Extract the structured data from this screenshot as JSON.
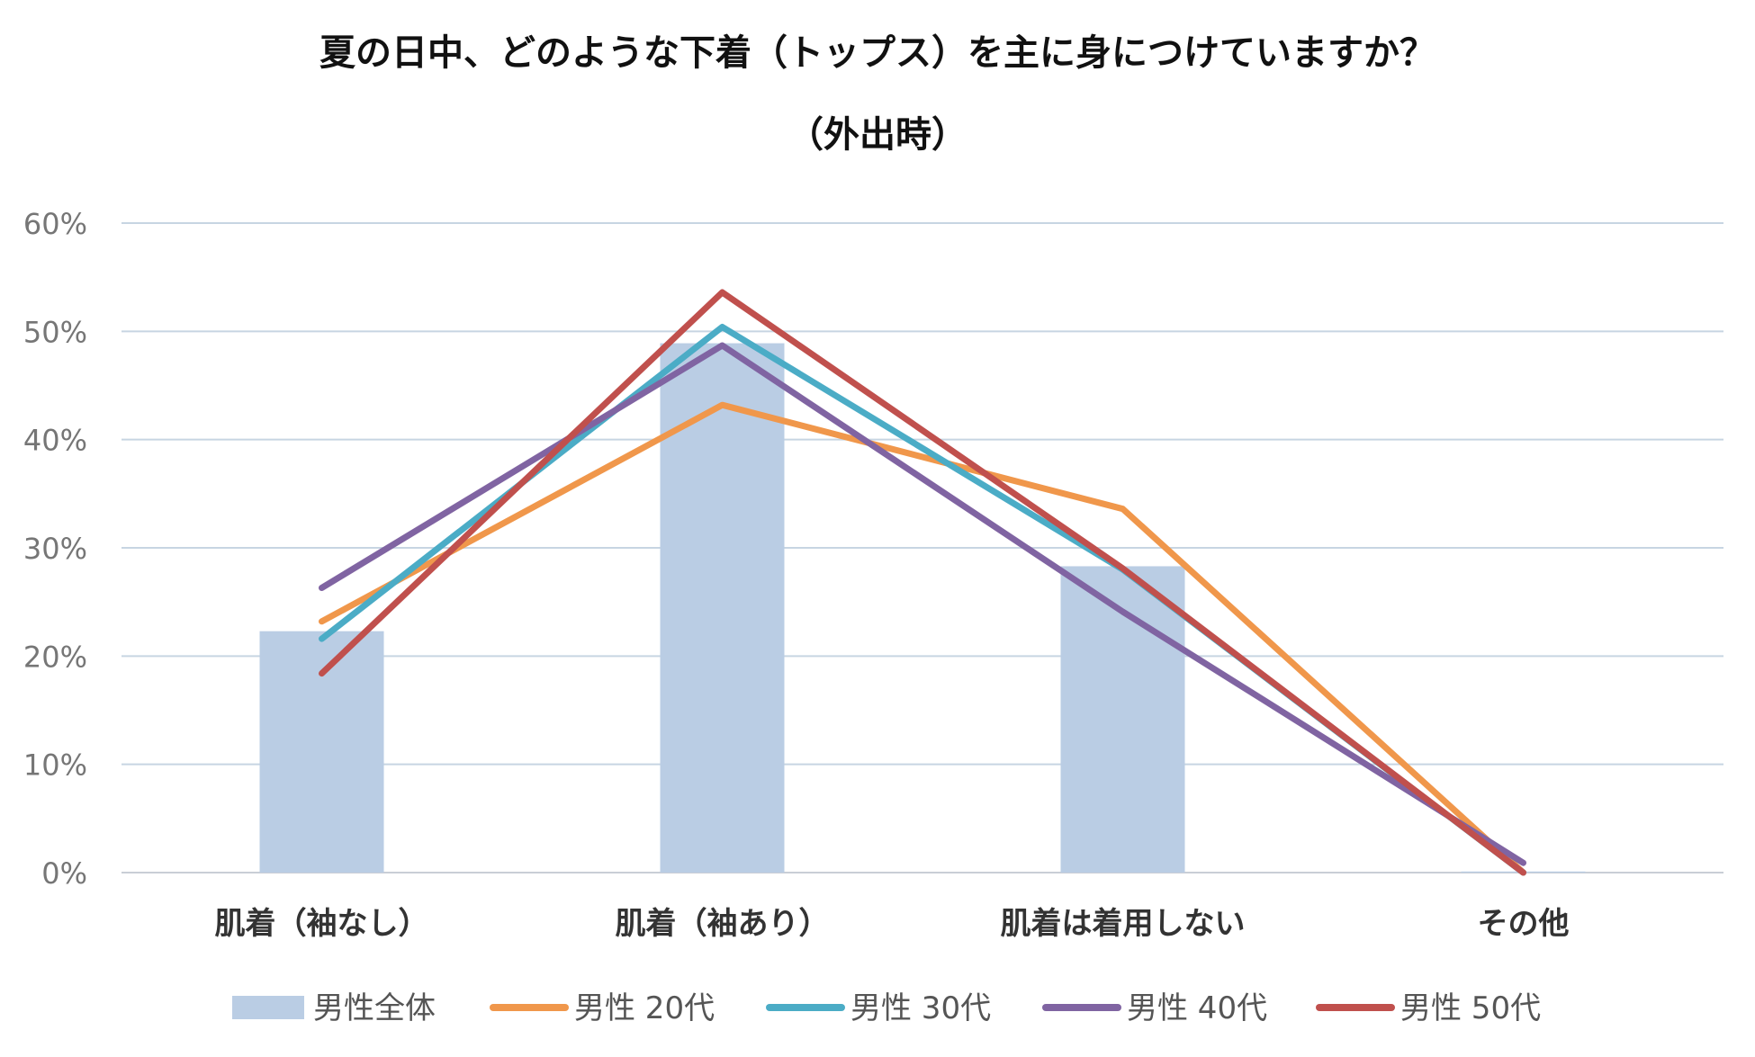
{
  "chart_data": {
    "type": "bar+line",
    "title": "夏の日中、どのような下着（トップス）を主に身につけていますか？",
    "subtitle": "（外出時）",
    "categories": [
      "肌着（袖なし）",
      "肌着（袖あり）",
      "肌着は着用しない",
      "その他"
    ],
    "y_ticks": [
      "0%",
      "10%",
      "20%",
      "30%",
      "40%",
      "50%",
      "60%"
    ],
    "ylim": [
      0,
      60
    ],
    "grid": true,
    "legend_position": "bottom",
    "bar_series": {
      "name": "男性全体",
      "color": "#BACDE4",
      "values": [
        22.3,
        48.9,
        28.3,
        0.1
      ]
    },
    "line_series": [
      {
        "name": "男性 20代",
        "color": "#F0974B",
        "values": [
          23.2,
          43.2,
          33.6,
          0.0
        ]
      },
      {
        "name": "男性 30代",
        "color": "#4BACC6",
        "values": [
          21.6,
          50.4,
          28.0,
          0.0
        ]
      },
      {
        "name": "男性 40代",
        "color": "#8064A2",
        "values": [
          26.3,
          48.7,
          24.1,
          0.9
        ]
      },
      {
        "name": "男性 50代",
        "color": "#C0504D",
        "values": [
          18.4,
          53.6,
          28.1,
          0.0
        ]
      }
    ]
  }
}
